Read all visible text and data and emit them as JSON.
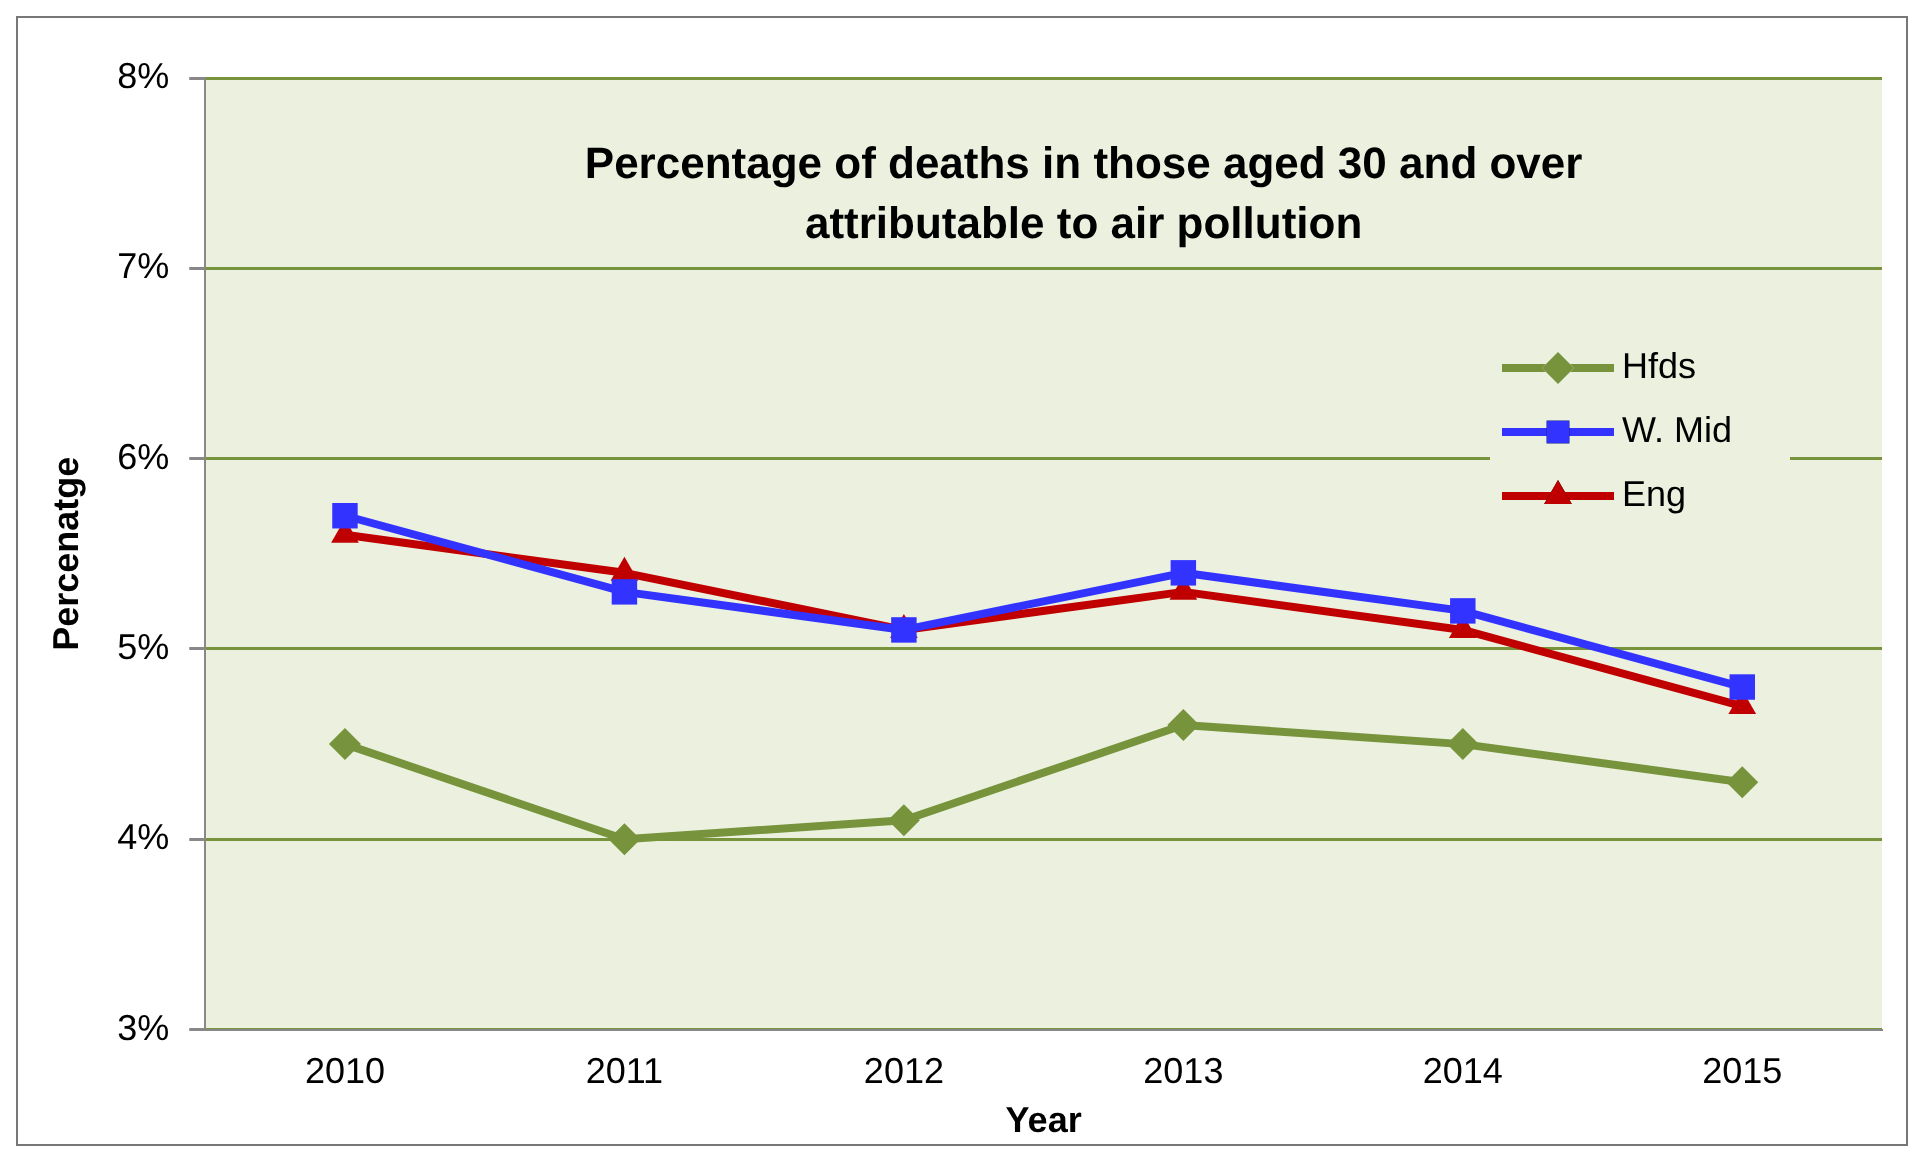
{
  "chart_data": {
    "type": "line",
    "title": "Percentage of deaths in those aged 30 and over\nattributable to air pollution",
    "xlabel": "Year",
    "ylabel": "Percenatge",
    "categories": [
      "2010",
      "2011",
      "2012",
      "2013",
      "2014",
      "2015"
    ],
    "series": [
      {
        "name": "Hfds",
        "color": "#77933c",
        "marker": "diamond",
        "values": [
          4.5,
          4.0,
          4.1,
          4.6,
          4.5,
          4.3
        ]
      },
      {
        "name": "W. Mid",
        "color": "#3333ff",
        "marker": "square",
        "values": [
          5.7,
          5.3,
          5.1,
          5.4,
          5.2,
          4.8
        ]
      },
      {
        "name": "Eng",
        "color": "#c00000",
        "marker": "triangle",
        "values": [
          5.6,
          5.4,
          5.1,
          5.3,
          5.1,
          4.7
        ]
      }
    ],
    "ylim": [
      3,
      8
    ],
    "yticks": [
      {
        "value": 3,
        "label": "3%"
      },
      {
        "value": 4,
        "label": "4%"
      },
      {
        "value": 5,
        "label": "5%"
      },
      {
        "value": 6,
        "label": "6%"
      },
      {
        "value": 7,
        "label": "7%"
      },
      {
        "value": 8,
        "label": "8%"
      }
    ],
    "grid": "y",
    "legend": "top right",
    "line_style": "solid"
  }
}
